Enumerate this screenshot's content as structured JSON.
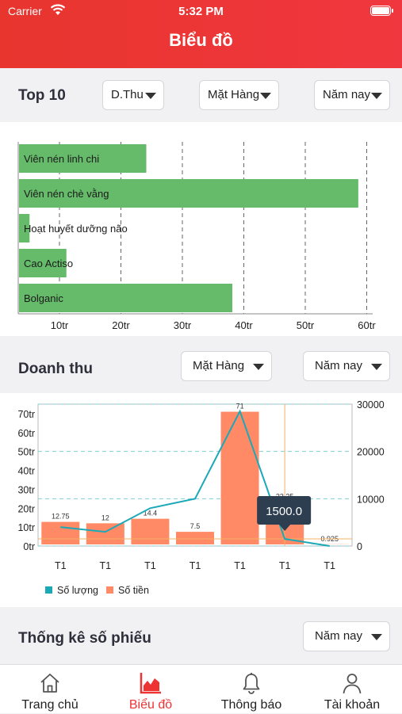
{
  "status_bar": {
    "carrier": "Carrier",
    "time": "5:32 PM"
  },
  "header": {
    "title": "Biểu đồ"
  },
  "top10": {
    "title": "Top 10",
    "filters": {
      "metric": "D.Thu",
      "group": "Mặt Hàng",
      "period": "Năm nay"
    }
  },
  "doanh_thu": {
    "title": "Doanh thu",
    "filters": {
      "group": "Mặt Hàng",
      "period": "Năm nay"
    }
  },
  "thong_ke": {
    "title": "Thống kê số phiếu",
    "filters": {
      "period": "Năm nay"
    }
  },
  "tabs": [
    {
      "label": "Trang chủ",
      "icon": "home-icon"
    },
    {
      "label": "Biểu đồ",
      "icon": "chart-icon"
    },
    {
      "label": "Thông báo",
      "icon": "bell-icon"
    },
    {
      "label": "Tài khoản",
      "icon": "user-icon"
    }
  ],
  "colors": {
    "accent": "#e8352e",
    "bar_green": "#66bb6a",
    "bar_orange": "#ff8a65",
    "line_teal": "#1ba9b8",
    "tooltip": "#2c3e50"
  },
  "chart_data": [
    {
      "type": "bar",
      "orientation": "horizontal",
      "categories": [
        "Viên nén linh chi",
        "Viên nén chè vằng",
        "Hoạt huyết dưỡng não",
        "Cao Actiso",
        "Bolganic"
      ],
      "values": [
        24,
        58.5,
        5,
        11,
        38
      ],
      "xticks": [
        "10tr",
        "20tr",
        "30tr",
        "40tr",
        "50tr",
        "60tr"
      ],
      "xlim": [
        5,
        61
      ],
      "grid": true
    },
    {
      "type": "bar",
      "categories": [
        "T1",
        "T1",
        "T1",
        "T1",
        "T1",
        "T1",
        "T1"
      ],
      "series": [
        {
          "name": "Số tiền",
          "values": [
            12.75,
            12,
            14.4,
            7.5,
            71,
            23.25,
            0.925
          ]
        },
        {
          "name": "Số lượng",
          "values": [
            4000,
            3000,
            8000,
            10000,
            28500,
            1500,
            0
          ]
        }
      ],
      "data_labels": [
        "12.75",
        "12",
        "14.4",
        "7.5",
        "71",
        "23.25",
        "0.925"
      ],
      "yticks_left": [
        "0tr",
        "10tr",
        "20tr",
        "30tr",
        "40tr",
        "50tr",
        "60tr",
        "70tr"
      ],
      "yticks_right": [
        "0",
        "10000",
        "20000",
        "30000"
      ],
      "ylim_left": [
        0,
        75
      ],
      "ylim_right": [
        0,
        30000
      ],
      "tooltip": "1500.0",
      "legend": [
        "Số lượng",
        "Số tiền"
      ],
      "legend_position": "bottom-left"
    }
  ]
}
